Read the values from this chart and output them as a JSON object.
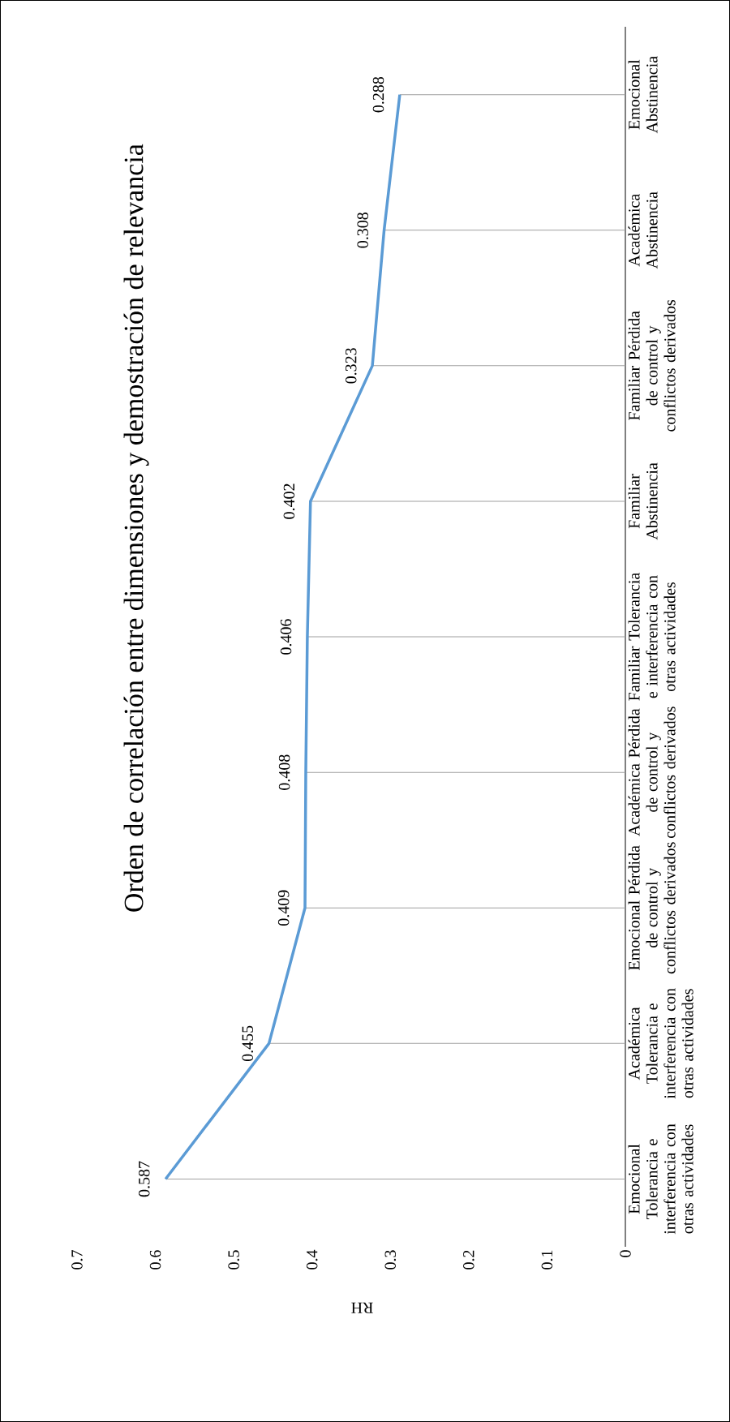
{
  "chart_data": {
    "type": "line",
    "orientation": "horizontal",
    "title": "Orden de correlación entre dimensiones  y demostración de relevancia",
    "xlabel": "RH",
    "categories": [
      "Emocional Abstinencia",
      "Académica Abstinencia",
      "Familiar Pérdida de control y conflictos derivados",
      "Familiar Abstinencia",
      "Familiar Tolerancia e interferencia con otras actividades",
      "Académica Pérdida de control y conflictos derivados",
      "Emocional Pérdida de control y conflictos derivados",
      "Académica Tolerancia e interferencia con otras actividades",
      "Emocional Tolerancia e interferencia con otras actividades"
    ],
    "values": [
      0.288,
      0.308,
      0.323,
      0.402,
      0.406,
      0.408,
      0.409,
      0.455,
      0.587
    ],
    "color": "#5b9bd5",
    "xlim": [
      0.7,
      0
    ],
    "xticks": [
      0.7,
      0.6,
      0.5,
      0.4,
      0.3,
      0.2,
      0.1,
      0
    ],
    "data_labels": true
  }
}
